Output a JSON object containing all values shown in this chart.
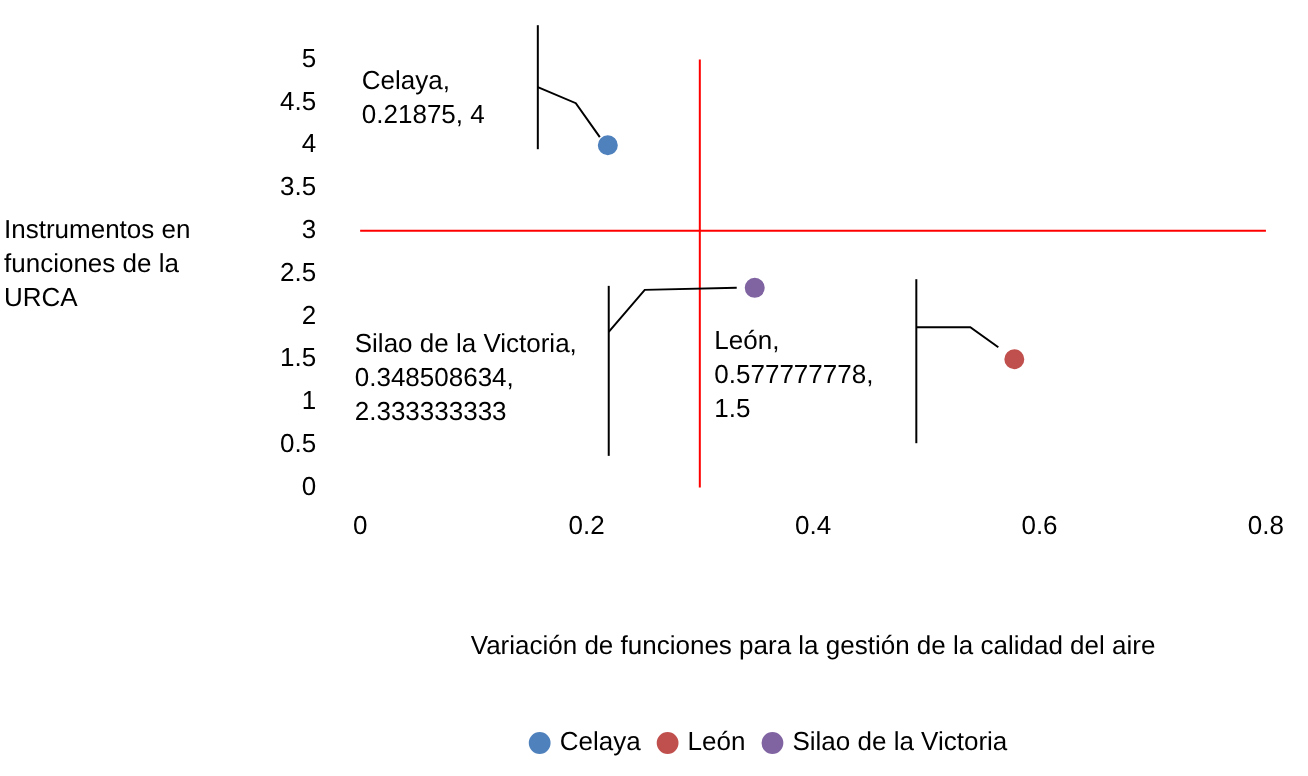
{
  "chart_data": {
    "type": "scatter",
    "xlabel": "Variación de funciones para la gestión de la calidad del aire",
    "ylabel": "Instrumentos en funciones de la URCA",
    "series": [
      {
        "name": "Celaya",
        "color": "#4f81bd",
        "x": [
          0.21875
        ],
        "values": [
          4
        ]
      },
      {
        "name": "León",
        "color": "#c0504d",
        "x": [
          0.577777778
        ],
        "values": [
          1.5
        ]
      },
      {
        "name": "Silao de la Victoria",
        "color": "#8064a2",
        "x": [
          0.348508634
        ],
        "values": [
          2.333333333
        ]
      }
    ],
    "xlim": [
      0,
      0.8
    ],
    "xticks": [
      0,
      0.2,
      0.4,
      0.6,
      0.8
    ],
    "ylim": [
      0,
      5
    ],
    "yticks": [
      0,
      0.5,
      1,
      1.5,
      2,
      2.5,
      3,
      3.5,
      4,
      4.5,
      5
    ],
    "ref_lines": [
      {
        "axis": "x",
        "value": 0.3,
        "color": "#ff0000"
      },
      {
        "axis": "y",
        "value": 3,
        "color": "#ff0000"
      }
    ],
    "annotations": [
      "Celaya, 0.21875, 4",
      "Silao de la Victoria, 0.348508634, 2.333333333",
      "León, 0.577777778, 1.5"
    ],
    "grid": false,
    "legend": "bottom",
    "marker": "circle"
  }
}
